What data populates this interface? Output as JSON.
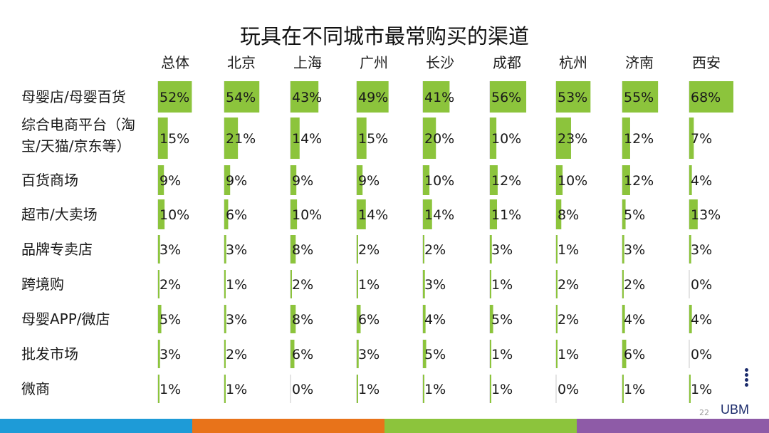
{
  "title": "玩具在不同城市最常购买的渠道",
  "colors": {
    "bar": "#8cc43c",
    "band": [
      "#1e9bd7",
      "#e8731a",
      "#8cc43c",
      "#8e5ba7"
    ]
  },
  "footer": {
    "page": "22",
    "brand": "UBM"
  },
  "chart_data": {
    "type": "table",
    "title": "玩具在不同城市最常购买的渠道",
    "columns": [
      "总体",
      "北京",
      "上海",
      "广州",
      "长沙",
      "成都",
      "杭州",
      "济南",
      "西安"
    ],
    "rows": [
      {
        "label": [
          "母婴店/母婴百货"
        ],
        "values": [
          52,
          54,
          43,
          49,
          41,
          56,
          53,
          55,
          68
        ]
      },
      {
        "label": [
          "综合电商平台（淘",
          "宝/天猫/京东等）"
        ],
        "values": [
          15,
          21,
          14,
          15,
          20,
          10,
          23,
          12,
          7
        ]
      },
      {
        "label": [
          "百货商场"
        ],
        "values": [
          9,
          9,
          9,
          9,
          10,
          12,
          10,
          12,
          4
        ]
      },
      {
        "label": [
          "超市/大卖场"
        ],
        "values": [
          10,
          6,
          10,
          14,
          14,
          11,
          8,
          5,
          13
        ]
      },
      {
        "label": [
          "品牌专卖店"
        ],
        "values": [
          3,
          3,
          8,
          2,
          2,
          3,
          1,
          3,
          3
        ]
      },
      {
        "label": [
          "跨境购"
        ],
        "values": [
          2,
          1,
          2,
          1,
          3,
          1,
          2,
          2,
          0
        ]
      },
      {
        "label": [
          "母婴APP/微店"
        ],
        "values": [
          5,
          3,
          8,
          6,
          4,
          5,
          2,
          4,
          4
        ]
      },
      {
        "label": [
          "批发市场"
        ],
        "values": [
          3,
          2,
          6,
          3,
          5,
          1,
          1,
          6,
          0
        ]
      },
      {
        "label": [
          "微商"
        ],
        "values": [
          1,
          1,
          0,
          1,
          1,
          1,
          0,
          1,
          1
        ]
      }
    ],
    "unit": "%",
    "value_max": 68
  }
}
